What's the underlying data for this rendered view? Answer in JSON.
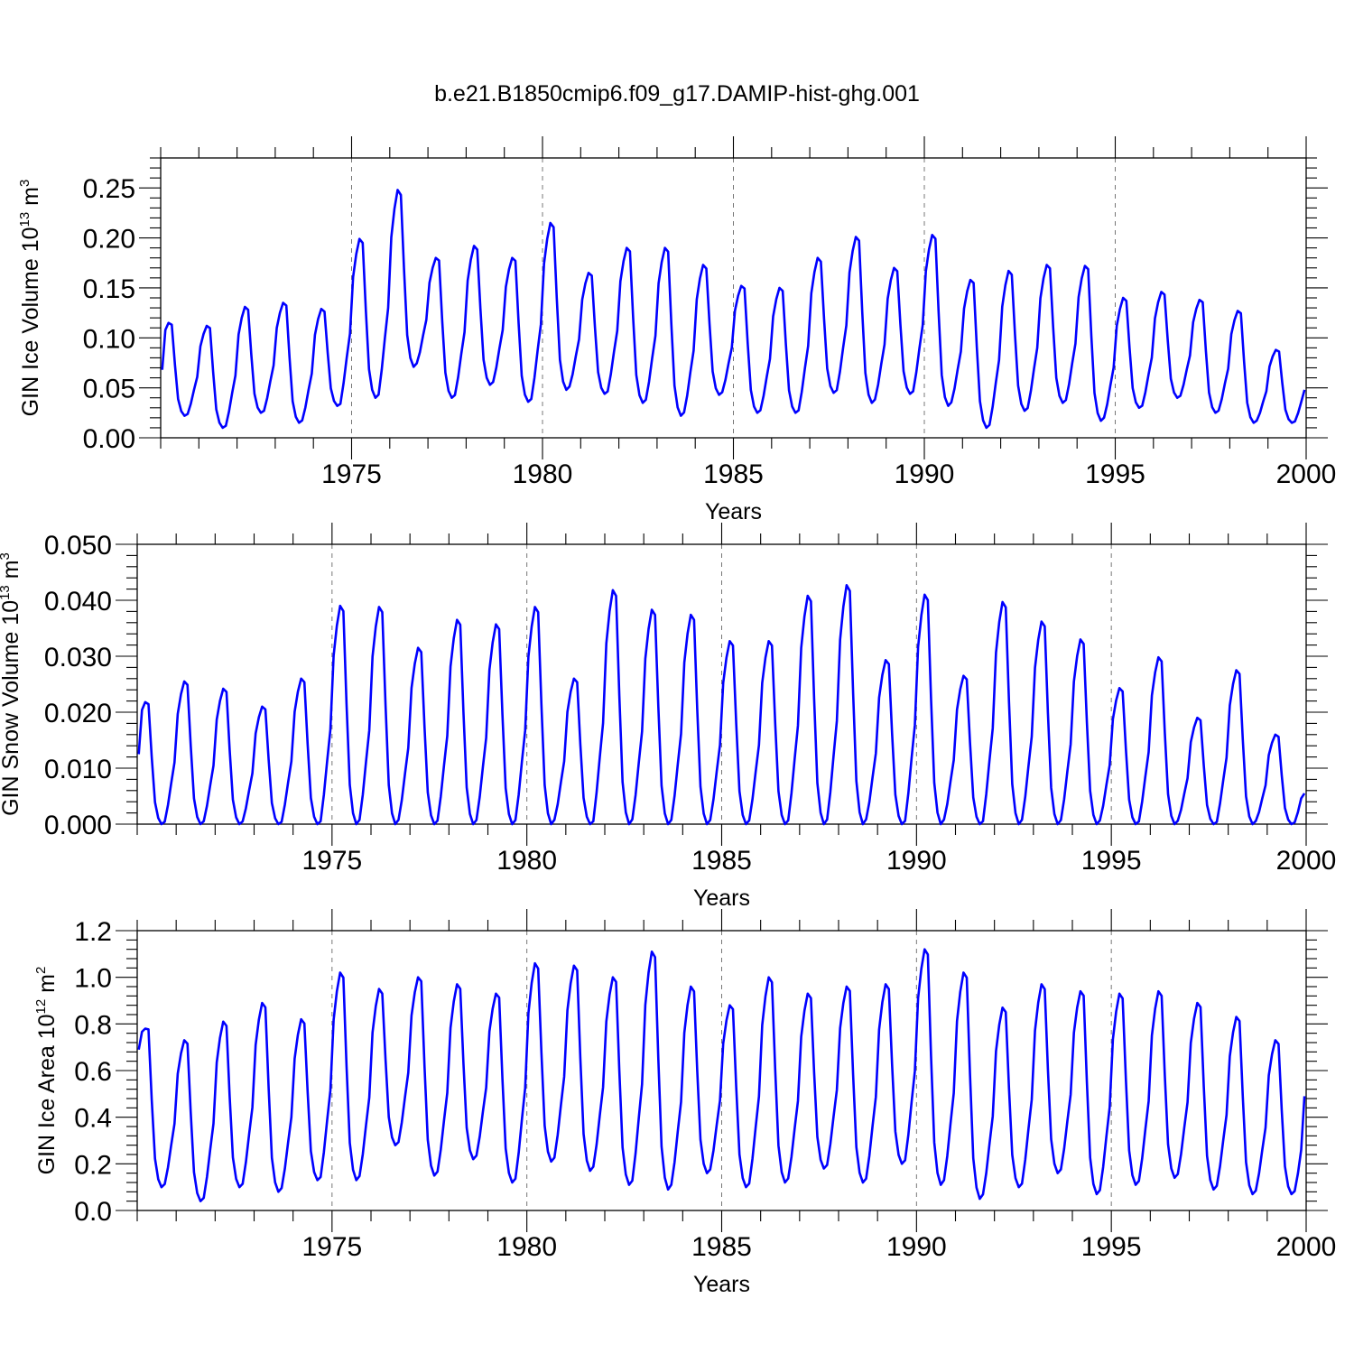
{
  "title": "b.e21.B1850cmip6.f09_g17.DAMIP-hist-ghg.001",
  "line_color": "#0000ff",
  "chart_data": [
    {
      "type": "line",
      "ylabel": "GIN Ice Volume 10",
      "ylabel_exp": "13",
      "ylabel_unit": " m",
      "ylabel_unit_exp": "3",
      "xlabel": "Years",
      "xlim": [
        1970.0,
        2000.0
      ],
      "ylim": [
        0.0,
        0.28
      ],
      "yticks": [
        0.0,
        0.05,
        0.1,
        0.15,
        0.2,
        0.25
      ],
      "ytick_labels": [
        "0.00",
        "0.05",
        "0.10",
        "0.15",
        "0.20",
        "0.25"
      ],
      "xticks": [
        1975,
        1980,
        1985,
        1990,
        1995,
        2000
      ],
      "xtick_labels": [
        "1975",
        "1980",
        "1985",
        "1990",
        "1995",
        "2000"
      ],
      "x_start": 1970.04,
      "x_step": 0.0833333,
      "peaks": [
        0.115,
        0.112,
        0.131,
        0.135,
        0.129,
        0.199,
        0.248,
        0.18,
        0.192,
        0.18,
        0.215,
        0.165,
        0.19,
        0.19,
        0.173,
        0.152,
        0.15,
        0.18,
        0.201,
        0.17,
        0.203,
        0.158,
        0.167,
        0.173,
        0.172,
        0.14,
        0.146,
        0.138,
        0.127,
        0.088
      ],
      "troughs": [
        0.022,
        0.01,
        0.025,
        0.015,
        0.032,
        0.04,
        0.071,
        0.04,
        0.053,
        0.036,
        0.048,
        0.044,
        0.035,
        0.022,
        0.043,
        0.025,
        0.025,
        0.045,
        0.035,
        0.044,
        0.032,
        0.01,
        0.027,
        0.035,
        0.017,
        0.03,
        0.04,
        0.025,
        0.015,
        0.015
      ],
      "start_value": 0.068,
      "end_value": 0.048
    },
    {
      "type": "line",
      "ylabel": "GIN Snow Volume 10",
      "ylabel_exp": "13",
      "ylabel_unit": " m",
      "ylabel_unit_exp": "3",
      "xlabel": "Years",
      "xlim": [
        1970.0,
        2000.0
      ],
      "ylim": [
        0.0,
        0.05
      ],
      "yticks": [
        0.0,
        0.01,
        0.02,
        0.03,
        0.04,
        0.05
      ],
      "ytick_labels": [
        "0.000",
        "0.010",
        "0.020",
        "0.030",
        "0.040",
        "0.050"
      ],
      "xticks": [
        1975,
        1980,
        1985,
        1990,
        1995,
        2000
      ],
      "xtick_labels": [
        "1975",
        "1980",
        "1985",
        "1990",
        "1995",
        "2000"
      ],
      "x_start": 1970.04,
      "x_step": 0.0833333,
      "peaks": [
        0.0218,
        0.0255,
        0.0242,
        0.021,
        0.026,
        0.039,
        0.0388,
        0.0315,
        0.0365,
        0.0357,
        0.0388,
        0.026,
        0.0418,
        0.0383,
        0.0374,
        0.0327,
        0.0327,
        0.0408,
        0.0427,
        0.0293,
        0.041,
        0.0265,
        0.0397,
        0.0362,
        0.033,
        0.0243,
        0.0298,
        0.019,
        0.0275,
        0.016
      ],
      "troughs": [
        0.0,
        0.0,
        0.0,
        0.0,
        0.0,
        0.0,
        0.0,
        0.0,
        0.0,
        0.0,
        0.0,
        0.0,
        0.0,
        0.0,
        0.0,
        0.0,
        0.0,
        0.0,
        0.0,
        0.0,
        0.0,
        0.0,
        0.0,
        0.0,
        0.0,
        0.0,
        0.0,
        0.0,
        0.0,
        0.0
      ],
      "start_value": 0.0125,
      "end_value": 0.0055
    },
    {
      "type": "line",
      "ylabel": "GIN Ice Area 10",
      "ylabel_exp": "12",
      "ylabel_unit": " m",
      "ylabel_unit_exp": "2",
      "xlabel": "Years",
      "xlim": [
        1970.0,
        2000.0
      ],
      "ylim": [
        0.0,
        1.2
      ],
      "yticks": [
        0.0,
        0.2,
        0.4,
        0.6,
        0.8,
        1.0,
        1.2
      ],
      "ytick_labels": [
        "0.0",
        "0.2",
        "0.4",
        "0.6",
        "0.8",
        "1.0",
        "1.2"
      ],
      "xticks": [
        1975,
        1980,
        1985,
        1990,
        1995,
        2000
      ],
      "xtick_labels": [
        "1975",
        "1980",
        "1985",
        "1990",
        "1995",
        "2000"
      ],
      "x_start": 1970.04,
      "x_step": 0.0833333,
      "peaks": [
        0.78,
        0.73,
        0.81,
        0.89,
        0.82,
        1.02,
        0.95,
        1.0,
        0.97,
        0.93,
        1.06,
        1.05,
        1.0,
        1.11,
        0.96,
        0.88,
        1.0,
        0.93,
        0.96,
        0.97,
        1.12,
        1.02,
        0.87,
        0.97,
        0.94,
        0.93,
        0.94,
        0.89,
        0.83,
        0.73
      ],
      "troughs": [
        0.1,
        0.04,
        0.1,
        0.08,
        0.13,
        0.13,
        0.28,
        0.15,
        0.22,
        0.12,
        0.21,
        0.17,
        0.11,
        0.09,
        0.16,
        0.1,
        0.12,
        0.18,
        0.12,
        0.2,
        0.11,
        0.05,
        0.1,
        0.16,
        0.07,
        0.11,
        0.14,
        0.09,
        0.07,
        0.07
      ],
      "start_value": 0.69,
      "end_value": 0.49
    }
  ]
}
